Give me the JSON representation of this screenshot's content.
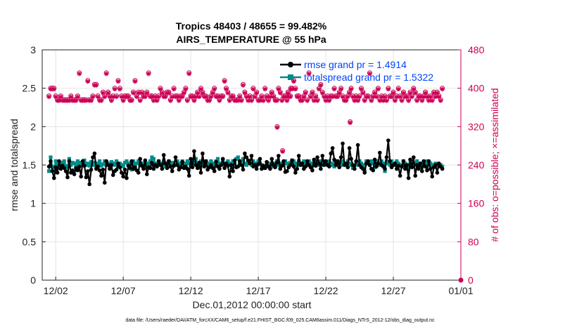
{
  "chart_data": {
    "type": "line",
    "title_line1": "Tropics 48403 / 48655 = 99.482%",
    "title_line2": "AIRS_TEMPERATURE @ 55 hPa",
    "xlabel": "Dec.01,2012 00:00:00 start",
    "ylabel_left": "rmse and totalspread",
    "ylabel_right": "# of obs: o=possible; ×=assimilated",
    "xlim": [
      0.5,
      31.5
    ],
    "ylim_left": [
      0,
      3
    ],
    "ylim_right": [
      0,
      480
    ],
    "x_ticks": [
      1.5,
      6.5,
      11.5,
      16.5,
      21.5,
      26.5,
      31.5
    ],
    "x_tick_labels": [
      "12/02",
      "12/07",
      "12/12",
      "12/17",
      "12/22",
      "12/27",
      "01/01"
    ],
    "y_left_ticks": [
      0,
      0.5,
      1,
      1.5,
      2,
      2.5,
      3
    ],
    "y_left_tick_labels": [
      "0",
      "0.5",
      "1",
      "1.5",
      "2",
      "2.5",
      "3"
    ],
    "y_right_ticks": [
      0,
      80,
      160,
      240,
      320,
      400,
      480
    ],
    "y_right_tick_labels": [
      "0",
      "80",
      "160",
      "240",
      "320",
      "400",
      "480"
    ],
    "grid": true,
    "legend_position": "top-right",
    "points_per_day": 8,
    "series": [
      {
        "name": "rmse grand pr = 1.4914",
        "axis": "left",
        "color": "#000000",
        "marker": "circle",
        "values": [
          1.48,
          1.55,
          1.42,
          1.33,
          1.47,
          1.4,
          1.55,
          1.45,
          1.49,
          1.46,
          1.42,
          1.34,
          1.55,
          1.4,
          1.43,
          1.38,
          1.46,
          1.43,
          1.48,
          1.35,
          1.55,
          1.49,
          1.34,
          1.42,
          1.25,
          1.44,
          1.6,
          1.65,
          1.45,
          1.48,
          1.43,
          1.36,
          1.44,
          1.27,
          1.55,
          1.5,
          1.45,
          1.5,
          1.37,
          1.42,
          1.44,
          1.52,
          1.47,
          1.4,
          1.35,
          1.44,
          1.33,
          1.49,
          1.46,
          1.55,
          1.45,
          1.47,
          1.43,
          1.4,
          1.58,
          1.49,
          1.45,
          1.56,
          1.38,
          1.47,
          1.46,
          1.53,
          1.45,
          1.5,
          1.48,
          1.55,
          1.5,
          1.45,
          1.63,
          1.52,
          1.46,
          1.55,
          1.48,
          1.42,
          1.49,
          1.6,
          1.5,
          1.44,
          1.47,
          1.54,
          1.46,
          1.48,
          1.45,
          1.36,
          1.58,
          1.47,
          1.68,
          1.5,
          1.46,
          1.53,
          1.4,
          1.65,
          1.48,
          1.55,
          1.44,
          1.47,
          1.5,
          1.46,
          1.42,
          1.54,
          1.48,
          1.45,
          1.5,
          1.58,
          1.46,
          1.52,
          1.49,
          1.35,
          1.5,
          1.42,
          1.56,
          1.47,
          1.48,
          1.55,
          1.5,
          1.44,
          1.65,
          1.6,
          1.56,
          1.52,
          1.62,
          1.48,
          1.5,
          1.45,
          1.51,
          1.58,
          1.45,
          1.49,
          1.46,
          1.54,
          1.48,
          1.45,
          1.58,
          1.5,
          1.47,
          1.53,
          1.62,
          1.45,
          1.49,
          1.55,
          1.41,
          1.42,
          1.47,
          1.5,
          1.56,
          1.48,
          1.4,
          1.45,
          1.62,
          1.5,
          1.52,
          1.45,
          1.48,
          1.55,
          1.5,
          1.47,
          1.43,
          1.57,
          1.49,
          1.6,
          1.52,
          1.45,
          1.62,
          1.5,
          1.55,
          1.5,
          1.48,
          1.65,
          1.72,
          1.57,
          1.5,
          1.55,
          1.47,
          1.6,
          1.78,
          1.5,
          1.52,
          1.47,
          1.72,
          1.58,
          1.5,
          1.45,
          1.55,
          1.76,
          1.5,
          1.47,
          1.45,
          1.4,
          1.52,
          1.55,
          1.5,
          1.45,
          1.43,
          1.57,
          1.48,
          1.52,
          1.66,
          1.5,
          1.48,
          1.45,
          1.6,
          1.82,
          1.55,
          1.47,
          1.5,
          1.52,
          1.45,
          1.49,
          1.36,
          1.48,
          1.55,
          1.45,
          1.5,
          1.33,
          1.57,
          1.47,
          1.6,
          1.36,
          1.5,
          1.45,
          1.52,
          1.42,
          1.55,
          1.48,
          1.43,
          1.55,
          1.45,
          1.35,
          1.47,
          1.5,
          1.4,
          1.52,
          1.48,
          1.45
        ]
      },
      {
        "name": "totalspread grand pr = 1.5322",
        "axis": "left",
        "color": "#008b8b",
        "marker": "square",
        "values": [
          1.42,
          1.6,
          1.48,
          1.44,
          1.55,
          1.5,
          1.47,
          1.53,
          1.52,
          1.55,
          1.49,
          1.47,
          1.58,
          1.5,
          1.53,
          1.52,
          1.48,
          1.55,
          1.5,
          1.53,
          1.51,
          1.56,
          1.5,
          1.52,
          1.49,
          1.54,
          1.5,
          1.53,
          1.47,
          1.52,
          1.55,
          1.49,
          1.51,
          1.55,
          1.5,
          1.52,
          1.49,
          1.54,
          1.52,
          1.5,
          1.55,
          1.49,
          1.52,
          1.5,
          1.48,
          1.53,
          1.55,
          1.5,
          1.52,
          1.44,
          1.55,
          1.5,
          1.52,
          1.55,
          1.5,
          1.52,
          1.48,
          1.55,
          1.52,
          1.5,
          1.55,
          1.6,
          1.58,
          1.52,
          1.5,
          1.55,
          1.52,
          1.5,
          1.55,
          1.48,
          1.52,
          1.55,
          1.5,
          1.53,
          1.52,
          1.5,
          1.55,
          1.52,
          1.47,
          1.55,
          1.52,
          1.5,
          1.55,
          1.52,
          1.5,
          1.55,
          1.52,
          1.58,
          1.52,
          1.5,
          1.55,
          1.52,
          1.5,
          1.55,
          1.52,
          1.5,
          1.55,
          1.52,
          1.5,
          1.55,
          1.58,
          1.52,
          1.5,
          1.55,
          1.52,
          1.5,
          1.55,
          1.52,
          1.5,
          1.55,
          1.52,
          1.58,
          1.6,
          1.52,
          1.55,
          1.58,
          1.52,
          1.5,
          1.55,
          1.52,
          1.5,
          1.55,
          1.52,
          1.5,
          1.55,
          1.52,
          1.5,
          1.48,
          1.46,
          1.5,
          1.52,
          1.5,
          1.48,
          1.52,
          1.5,
          1.55,
          1.5,
          1.48,
          1.52,
          1.5,
          1.55,
          1.52,
          1.5,
          1.53,
          1.56,
          1.55,
          1.52,
          1.5,
          1.55,
          1.52,
          1.5,
          1.55,
          1.52,
          1.5,
          1.55,
          1.52,
          1.5,
          1.55,
          1.52,
          1.5,
          1.55,
          1.52,
          1.5,
          1.55,
          1.52,
          1.5,
          1.55,
          1.5,
          1.52,
          1.48,
          1.5,
          1.55,
          1.52,
          1.5,
          1.55,
          1.52,
          1.5,
          1.55,
          1.52,
          1.5,
          1.46,
          1.5,
          1.52,
          1.5,
          1.55,
          1.52,
          1.5,
          1.42,
          1.55,
          1.52,
          1.5,
          1.55,
          1.52,
          1.47,
          1.55,
          1.52,
          1.5,
          1.55,
          1.52,
          1.42,
          1.55,
          1.52,
          1.5,
          1.55,
          1.52,
          1.5,
          1.55,
          1.52,
          1.5,
          1.48,
          1.55,
          1.52,
          1.5,
          1.45,
          1.52,
          1.55,
          1.5,
          1.52,
          1.55,
          1.5,
          1.52,
          1.48,
          1.5,
          1.52,
          1.55,
          1.5,
          1.52,
          1.48,
          1.5,
          1.52,
          1.5,
          1.48,
          1.5,
          1.48
        ]
      },
      {
        "name": "# of obs possible",
        "axis": "right",
        "color": "#cc0055",
        "marker": "circle-open",
        "values": [
          384,
          400,
          400,
          400,
          384,
          376,
          376,
          384,
          376,
          376,
          376,
          376,
          376,
          384,
          376,
          376,
          376,
          384,
          432,
          376,
          376,
          376,
          376,
          416,
          376,
          376,
          384,
          408,
          408,
          384,
          376,
          376,
          392,
          384,
          432,
          392,
          384,
          376,
          384,
          400,
          384,
          416,
          400,
          384,
          376,
          384,
          384,
          384,
          376,
          376,
          392,
          416,
          384,
          392,
          376,
          392,
          384,
          384,
          392,
          432,
          384,
          384,
          376,
          384,
          376,
          384,
          400,
          392,
          384,
          384,
          392,
          392,
          376,
          384,
          400,
          384,
          384,
          376,
          384,
          384,
          392,
          400,
          376,
          432,
          384,
          384,
          376,
          384,
          392,
          384,
          400,
          392,
          384,
          384,
          376,
          376,
          384,
          392,
          400,
          384,
          384,
          376,
          384,
          384,
          416,
          400,
          392,
          376,
          384,
          384,
          376,
          376,
          376,
          384,
          376,
          408,
          392,
          384,
          376,
          384,
          376,
          400,
          384,
          392,
          376,
          376,
          384,
          376,
          400,
          384,
          376,
          384,
          392,
          384,
          376,
          376,
          400,
          392,
          376,
          384,
          384,
          376,
          384,
          384,
          400,
          416,
          400,
          384,
          384,
          376,
          376,
          384,
          392,
          376,
          432,
          384,
          392,
          376,
          384,
          376,
          400,
          408,
          392,
          384,
          376,
          384,
          376,
          384,
          384,
          400,
          384,
          384,
          392,
          400,
          384,
          376,
          376,
          384,
          392,
          400,
          384,
          376,
          384,
          376,
          384,
          400,
          392,
          376,
          384,
          384,
          432,
          376,
          384,
          392,
          384,
          400,
          376,
          384,
          376,
          384,
          376,
          400,
          384,
          384,
          392,
          376,
          384,
          400,
          384,
          376,
          392,
          384,
          384,
          376,
          392,
          384,
          400,
          392,
          376,
          384,
          384,
          376,
          384,
          392,
          384,
          376,
          384,
          376,
          392,
          384,
          392,
          384,
          376,
          400
        ]
      },
      {
        "name": "# of obs assimilated",
        "axis": "right",
        "color": "#cc0055",
        "marker": "cross",
        "values": [
          382,
          398,
          398,
          398,
          382,
          374,
          374,
          382,
          374,
          374,
          374,
          374,
          374,
          382,
          374,
          374,
          374,
          382,
          430,
          374,
          374,
          374,
          374,
          414,
          374,
          374,
          382,
          406,
          406,
          382,
          374,
          374,
          390,
          382,
          430,
          390,
          382,
          374,
          382,
          398,
          382,
          414,
          398,
          382,
          374,
          382,
          382,
          382,
          374,
          374,
          390,
          414,
          382,
          390,
          374,
          390,
          382,
          382,
          390,
          430,
          382,
          382,
          374,
          382,
          374,
          382,
          398,
          390,
          382,
          382,
          390,
          390,
          374,
          382,
          398,
          382,
          382,
          374,
          382,
          382,
          390,
          398,
          374,
          430,
          382,
          382,
          374,
          382,
          390,
          382,
          398,
          390,
          382,
          382,
          374,
          374,
          382,
          390,
          398,
          382,
          382,
          374,
          382,
          382,
          414,
          398,
          390,
          374,
          382,
          382,
          374,
          374,
          374,
          382,
          374,
          406,
          390,
          382,
          374,
          382,
          374,
          398,
          382,
          390,
          374,
          374,
          382,
          374,
          398,
          382,
          374,
          382,
          390,
          382,
          374,
          374,
          398,
          390,
          374,
          382,
          382,
          374,
          382,
          382,
          398,
          414,
          398,
          382,
          382,
          374,
          374,
          382,
          390,
          374,
          430,
          382,
          390,
          374,
          382,
          374,
          398,
          406,
          390,
          382,
          374,
          382,
          374,
          382,
          382,
          398,
          382,
          382,
          390,
          398,
          382,
          374,
          374,
          382,
          390,
          398,
          382,
          374,
          382,
          374,
          382,
          398,
          390,
          374,
          382,
          382,
          430,
          374,
          382,
          390,
          382,
          398,
          374,
          382,
          374,
          382,
          374,
          398,
          382,
          382,
          390,
          374,
          382,
          398,
          382,
          374,
          390,
          382,
          382,
          374,
          390,
          382,
          398,
          390,
          374,
          382,
          382,
          374,
          382,
          390,
          382,
          374,
          382,
          374,
          390,
          382,
          390,
          382,
          374,
          398
        ]
      }
    ],
    "outliers_right_axis": [
      {
        "x": 17.9,
        "possible": 320,
        "assimilated": 318
      },
      {
        "x": 18.3,
        "possible": 270,
        "assimilated": 268
      },
      {
        "x": 18.7,
        "possible": 392,
        "assimilated": 390
      },
      {
        "x": 18.9,
        "possible": 400,
        "assimilated": 398
      },
      {
        "x": 23.3,
        "possible": 330,
        "assimilated": 328
      },
      {
        "x": 31.5,
        "possible": 0,
        "assimilated": 0
      }
    ]
  },
  "footnote": "data file: /Users/raeder/DAI/ATM_forcXX/CAM6_setup/f.e21.FHIST_BGC.f09_025.CAM6assim.011/Diags_NTrS_2012-12/obs_diag_output.nc"
}
